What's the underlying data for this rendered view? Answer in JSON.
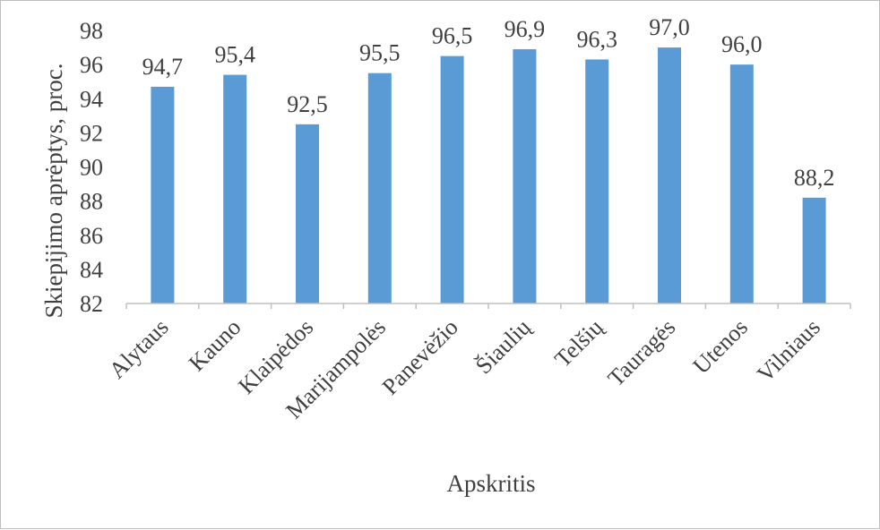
{
  "chart_data": {
    "type": "bar",
    "categories": [
      "Alytaus",
      "Kauno",
      "Klaipėdos",
      "Marijampolės",
      "Panevėžio",
      "Šiaulių",
      "Telšių",
      "Tauragės",
      "Utenos",
      "Vilniaus"
    ],
    "values": [
      94.7,
      95.4,
      92.5,
      95.5,
      96.5,
      96.9,
      96.3,
      97.0,
      96.0,
      88.2
    ],
    "value_labels": [
      "94,7",
      "95,4",
      "92,5",
      "95,5",
      "96,5",
      "96,9",
      "96,3",
      "97,0",
      "96,0",
      "88,2"
    ],
    "xlabel": "Apskritis",
    "ylabel": "Skiepijimo aprėptys, proc.",
    "ylim": [
      82,
      98
    ],
    "yticks": [
      82,
      84,
      86,
      88,
      90,
      92,
      94,
      96,
      98
    ],
    "grid": false,
    "bar_color": "#5b9bd5"
  }
}
